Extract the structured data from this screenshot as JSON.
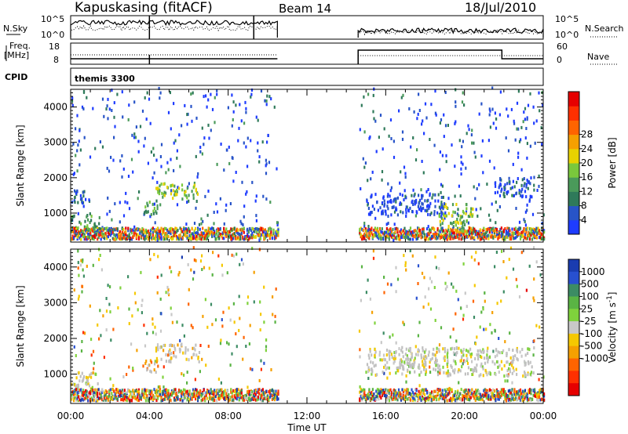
{
  "header": {
    "station": "Kapuskasing (fitACF)",
    "beam": "Beam 14",
    "date": "18/Jul/2010"
  },
  "labels": {
    "nsky": "N.Sky",
    "nsky_ticks": [
      "10^5",
      "10^0"
    ],
    "nsearch": "N.Search",
    "nsearch_ticks": [
      "10^5",
      "10^0"
    ],
    "freq": "Freq.",
    "freq_unit": "[MHz]",
    "freq_ticks": [
      "18",
      "8"
    ],
    "nave": "Nave",
    "nave_ticks": [
      "60",
      "0"
    ],
    "cpid": "CPID",
    "cpid_value": "themis 3300"
  },
  "colors": {
    "power": [
      "#1e3cff",
      "#2854c8",
      "#2f7a5a",
      "#4a9a5a",
      "#7ac83c",
      "#e8d200",
      "#f5a000",
      "#ff6400",
      "#ff3000",
      "#e60000"
    ],
    "velocity": [
      "#1a3cb0",
      "#2850d0",
      "#3c8c64",
      "#5ab444",
      "#7fd23c",
      "#c8c8c8",
      "#f5c800",
      "#f5a000",
      "#ff6400",
      "#ff3000",
      "#e60000"
    ],
    "ground": "#c0c0c0"
  },
  "chart_data": [
    {
      "type": "heatmap",
      "name": "power",
      "xlabel": "",
      "ylabel": "Slant Range [km]",
      "x_ticks": [
        "00:00",
        "04:00",
        "08:00",
        "12:00",
        "16:00",
        "20:00",
        "00:00"
      ],
      "y_ticks": [
        1000,
        2000,
        3000,
        4000
      ],
      "ylim": [
        180,
        4500
      ],
      "xlim_hours": [
        0,
        24
      ],
      "colorbar_label": "Power [dB]",
      "colorbar_ticks": [
        "4",
        "8",
        "12",
        "16",
        "20",
        "24",
        "28"
      ],
      "data_gap_hours": [
        10.5,
        14.6
      ],
      "regions": [
        {
          "t": [
            0,
            1.5
          ],
          "r": [
            400,
            900
          ],
          "level": 0.35
        },
        {
          "t": [
            0,
            1.0
          ],
          "r": [
            1200,
            1600
          ],
          "level": 0.15
        },
        {
          "t": [
            4.3,
            6.5
          ],
          "r": [
            1350,
            1800
          ],
          "level": 0.45
        },
        {
          "t": [
            3.6,
            4.4
          ],
          "r": [
            900,
            1300
          ],
          "level": 0.3
        },
        {
          "t": [
            18.6,
            20.4
          ],
          "r": [
            500,
            1200
          ],
          "level": 0.45
        },
        {
          "t": [
            15.0,
            19.0
          ],
          "r": [
            900,
            1500
          ],
          "level": 0.08
        },
        {
          "t": [
            21.5,
            23.5
          ],
          "r": [
            1400,
            2000
          ],
          "level": 0.1
        }
      ]
    },
    {
      "type": "heatmap",
      "name": "velocity",
      "xlabel": "Time UT",
      "ylabel": "Slant Range [km]",
      "x_ticks": [
        "00:00",
        "04:00",
        "08:00",
        "12:00",
        "16:00",
        "20:00",
        "00:00"
      ],
      "y_ticks": [
        1000,
        2000,
        3000,
        4000
      ],
      "ylim": [
        180,
        4500
      ],
      "xlim_hours": [
        0,
        24
      ],
      "colorbar_label": "Velocity [m s^-1]",
      "colorbar_ticks": [
        "1000",
        "500",
        "100",
        "25",
        "-25",
        "-100",
        "-500",
        "-1000"
      ],
      "data_gap_hours": [
        10.5,
        14.6
      ],
      "regions": [
        {
          "t": [
            0,
            1.5
          ],
          "r": [
            400,
            1000
          ],
          "level": 0.5
        },
        {
          "t": [
            4.3,
            6.5
          ],
          "r": [
            1300,
            1800
          ],
          "level": 0.6
        },
        {
          "t": [
            3.6,
            4.4
          ],
          "r": [
            1000,
            1350
          ],
          "level": 0.7
        },
        {
          "t": [
            15.0,
            23.5
          ],
          "r": [
            900,
            1700
          ],
          "level": 0.5
        }
      ]
    }
  ]
}
